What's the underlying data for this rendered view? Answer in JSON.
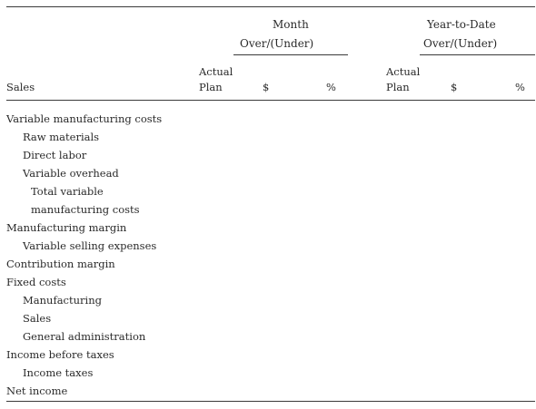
{
  "header": {
    "month_title": "Month",
    "month_sub": "Over/(Under)",
    "ytd_title": "Year-to-Date",
    "ytd_sub": "Over/(Under)",
    "row_label": "Sales",
    "month_actual_1": "Actual",
    "month_actual_2": "Plan",
    "month_dollar": "$",
    "month_pct": "%",
    "ytd_actual_1": "Actual",
    "ytd_actual_2": "Plan",
    "ytd_dollar": "$",
    "ytd_pct": "%"
  },
  "rows": [
    "Variable manufacturing costs",
    "Raw materials",
    "Direct labor",
    "Variable overhead",
    "Total variable",
    "manufacturing costs",
    "Manufacturing margin",
    "Variable selling expenses",
    "Contribution margin",
    "Fixed costs",
    "Manufacturing",
    "Sales",
    "General administration",
    "Income before taxes",
    "Income taxes",
    "Net income"
  ]
}
